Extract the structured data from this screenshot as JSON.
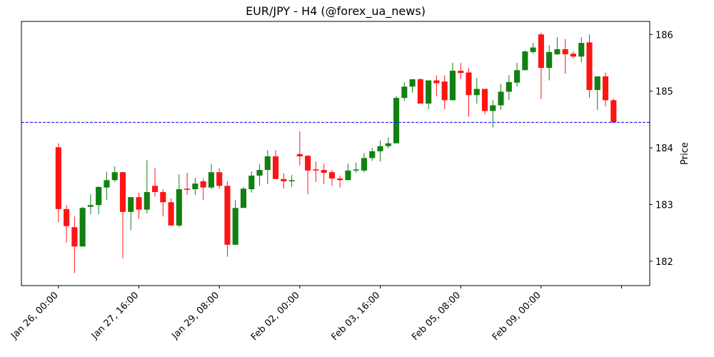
{
  "chart_data": {
    "type": "candlestick",
    "title": "EUR/JPY - H4 (@forex_ua_news)",
    "y_label": "Price",
    "categories": [
      "Jan 26, 00:00",
      null,
      null,
      null,
      null,
      null,
      null,
      null,
      null,
      null,
      "Jan 27, 16:00",
      null,
      null,
      null,
      null,
      null,
      null,
      null,
      null,
      null,
      "Jan 29, 08:00",
      null,
      null,
      null,
      null,
      null,
      null,
      null,
      null,
      null,
      "Feb 02, 00:00",
      null,
      null,
      null,
      null,
      null,
      null,
      null,
      null,
      null,
      "Feb 03, 16:00",
      null,
      null,
      null,
      null,
      null,
      null,
      null,
      null,
      null,
      "Feb 05, 08:00",
      null,
      null,
      null,
      null,
      null,
      null,
      null,
      null,
      null,
      "Feb 09, 00:00",
      null,
      null,
      null,
      null,
      null,
      null,
      null,
      null,
      null
    ],
    "xticks": [
      0,
      10,
      20,
      30,
      40,
      50,
      60,
      70
    ],
    "xlim": [
      -4.6,
      73.5
    ],
    "open": [
      184.01,
      182.92,
      182.6,
      182.26,
      182.96,
      182.99,
      183.3,
      183.43,
      183.57,
      182.87,
      183.13,
      182.91,
      183.33,
      183.22,
      183.04,
      182.63,
      183.28,
      183.27,
      183.41,
      183.3,
      183.57,
      183.33,
      182.29,
      182.94,
      183.27,
      183.51,
      183.61,
      183.85,
      183.45,
      183.41,
      183.89,
      183.86,
      183.62,
      183.61,
      183.57,
      183.46,
      183.43,
      183.6,
      183.6,
      183.82,
      183.94,
      184.03,
      184.08,
      184.88,
      185.08,
      185.21,
      184.78,
      185.19,
      185.17,
      184.84,
      185.36,
      185.33,
      184.93,
      185.04,
      184.65,
      184.75,
      184.99,
      185.15,
      185.37,
      185.69,
      186.0,
      185.41,
      185.65,
      185.74,
      185.66,
      185.61,
      185.86,
      185.02,
      185.26,
      184.84
    ],
    "high": [
      184.08,
      182.99,
      182.79,
      182.96,
      183.18,
      183.32,
      183.58,
      183.67,
      183.58,
      183.13,
      183.21,
      183.78,
      183.64,
      183.27,
      183.11,
      183.53,
      183.56,
      183.47,
      183.46,
      183.72,
      183.64,
      183.41,
      183.08,
      183.31,
      183.58,
      183.71,
      183.96,
      183.96,
      183.55,
      183.52,
      184.29,
      183.87,
      183.76,
      183.72,
      183.61,
      183.51,
      183.72,
      183.74,
      183.91,
      184.0,
      184.13,
      184.18,
      184.91,
      185.16,
      185.21,
      185.23,
      185.19,
      185.28,
      185.28,
      185.5,
      185.5,
      185.41,
      185.23,
      185.04,
      184.84,
      185.13,
      185.28,
      185.5,
      185.72,
      185.85,
      186.03,
      185.81,
      185.95,
      185.92,
      185.7,
      185.95,
      186.0,
      185.26,
      185.33,
      184.87
    ],
    "low": [
      182.69,
      182.33,
      181.79,
      182.26,
      182.83,
      182.83,
      183.08,
      183.4,
      182.05,
      182.55,
      182.75,
      182.84,
      183.14,
      182.79,
      182.63,
      182.6,
      183.17,
      183.17,
      183.08,
      183.27,
      183.28,
      182.08,
      182.29,
      182.94,
      183.21,
      183.33,
      183.36,
      183.45,
      183.28,
      183.31,
      183.69,
      183.18,
      183.4,
      183.36,
      183.33,
      183.3,
      183.43,
      183.56,
      183.57,
      183.77,
      183.76,
      183.99,
      184.08,
      184.83,
      184.97,
      184.78,
      184.68,
      184.91,
      184.68,
      184.84,
      185.21,
      184.55,
      184.78,
      184.59,
      184.36,
      184.67,
      184.84,
      185.08,
      185.37,
      185.66,
      184.86,
      185.19,
      185.64,
      185.31,
      185.57,
      185.51,
      184.88,
      184.67,
      184.73,
      184.44
    ],
    "close": [
      182.92,
      182.62,
      182.26,
      182.94,
      182.99,
      183.31,
      183.43,
      183.57,
      182.87,
      183.13,
      182.91,
      183.22,
      183.22,
      183.04,
      182.63,
      183.27,
      183.26,
      183.37,
      183.3,
      183.57,
      183.33,
      182.29,
      182.94,
      183.28,
      183.51,
      183.61,
      183.85,
      183.45,
      183.41,
      183.43,
      183.85,
      183.6,
      183.6,
      183.56,
      183.46,
      183.43,
      183.6,
      183.62,
      183.82,
      183.94,
      184.03,
      184.08,
      184.88,
      185.08,
      185.21,
      184.78,
      185.19,
      185.14,
      184.84,
      185.36,
      185.32,
      184.93,
      185.04,
      184.65,
      184.75,
      184.99,
      185.16,
      185.37,
      185.7,
      185.77,
      185.41,
      185.69,
      185.74,
      185.65,
      185.61,
      185.85,
      185.02,
      185.26,
      184.84,
      184.45
    ],
    "up_color": "#128012",
    "down_color": "#ff1414",
    "hline": 184.45,
    "hline_color": "#0000ff",
    "ylim": [
      181.57,
      186.23
    ],
    "yticks": [
      182,
      183,
      184,
      185,
      186
    ],
    "y_axis_side": "right"
  }
}
